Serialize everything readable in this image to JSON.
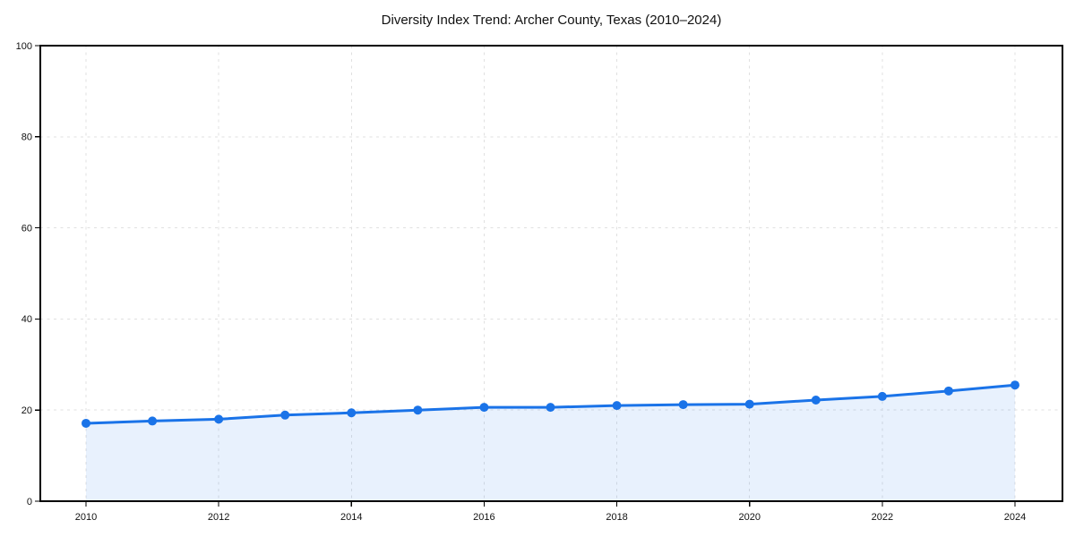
{
  "page": {
    "background": "#ffffff"
  },
  "chart_data": {
    "type": "area",
    "title": "Diversity Index Trend: Archer County, Texas (2010–2024)",
    "x": [
      2010,
      2011,
      2012,
      2013,
      2014,
      2015,
      2016,
      2017,
      2018,
      2019,
      2020,
      2021,
      2022,
      2023,
      2024
    ],
    "series": [
      {
        "name": "Diversity Index",
        "values": [
          17.1,
          17.6,
          18.0,
          18.9,
          19.4,
          20.0,
          20.6,
          20.6,
          21.0,
          21.2,
          21.3,
          22.2,
          23.0,
          24.2,
          25.5
        ]
      }
    ],
    "xlabel": "",
    "ylabel": "",
    "xlim": [
      2009.3,
      2024.7
    ],
    "ylim": [
      0,
      100
    ],
    "xticks": [
      2010,
      2012,
      2014,
      2016,
      2018,
      2020,
      2022,
      2024
    ],
    "yticks": [
      0,
      20,
      40,
      60,
      80,
      100
    ],
    "grid": true,
    "grid_style": "dashed",
    "legend_position": "none",
    "line_color": "#1a73e8",
    "marker_color": "#1a73e8",
    "fill_color": "rgba(26,115,232,0.10)",
    "axis_color": "#000000",
    "grid_color": "#e0e0e0",
    "tick_label_color": "#111111",
    "title_color": "#111111"
  }
}
